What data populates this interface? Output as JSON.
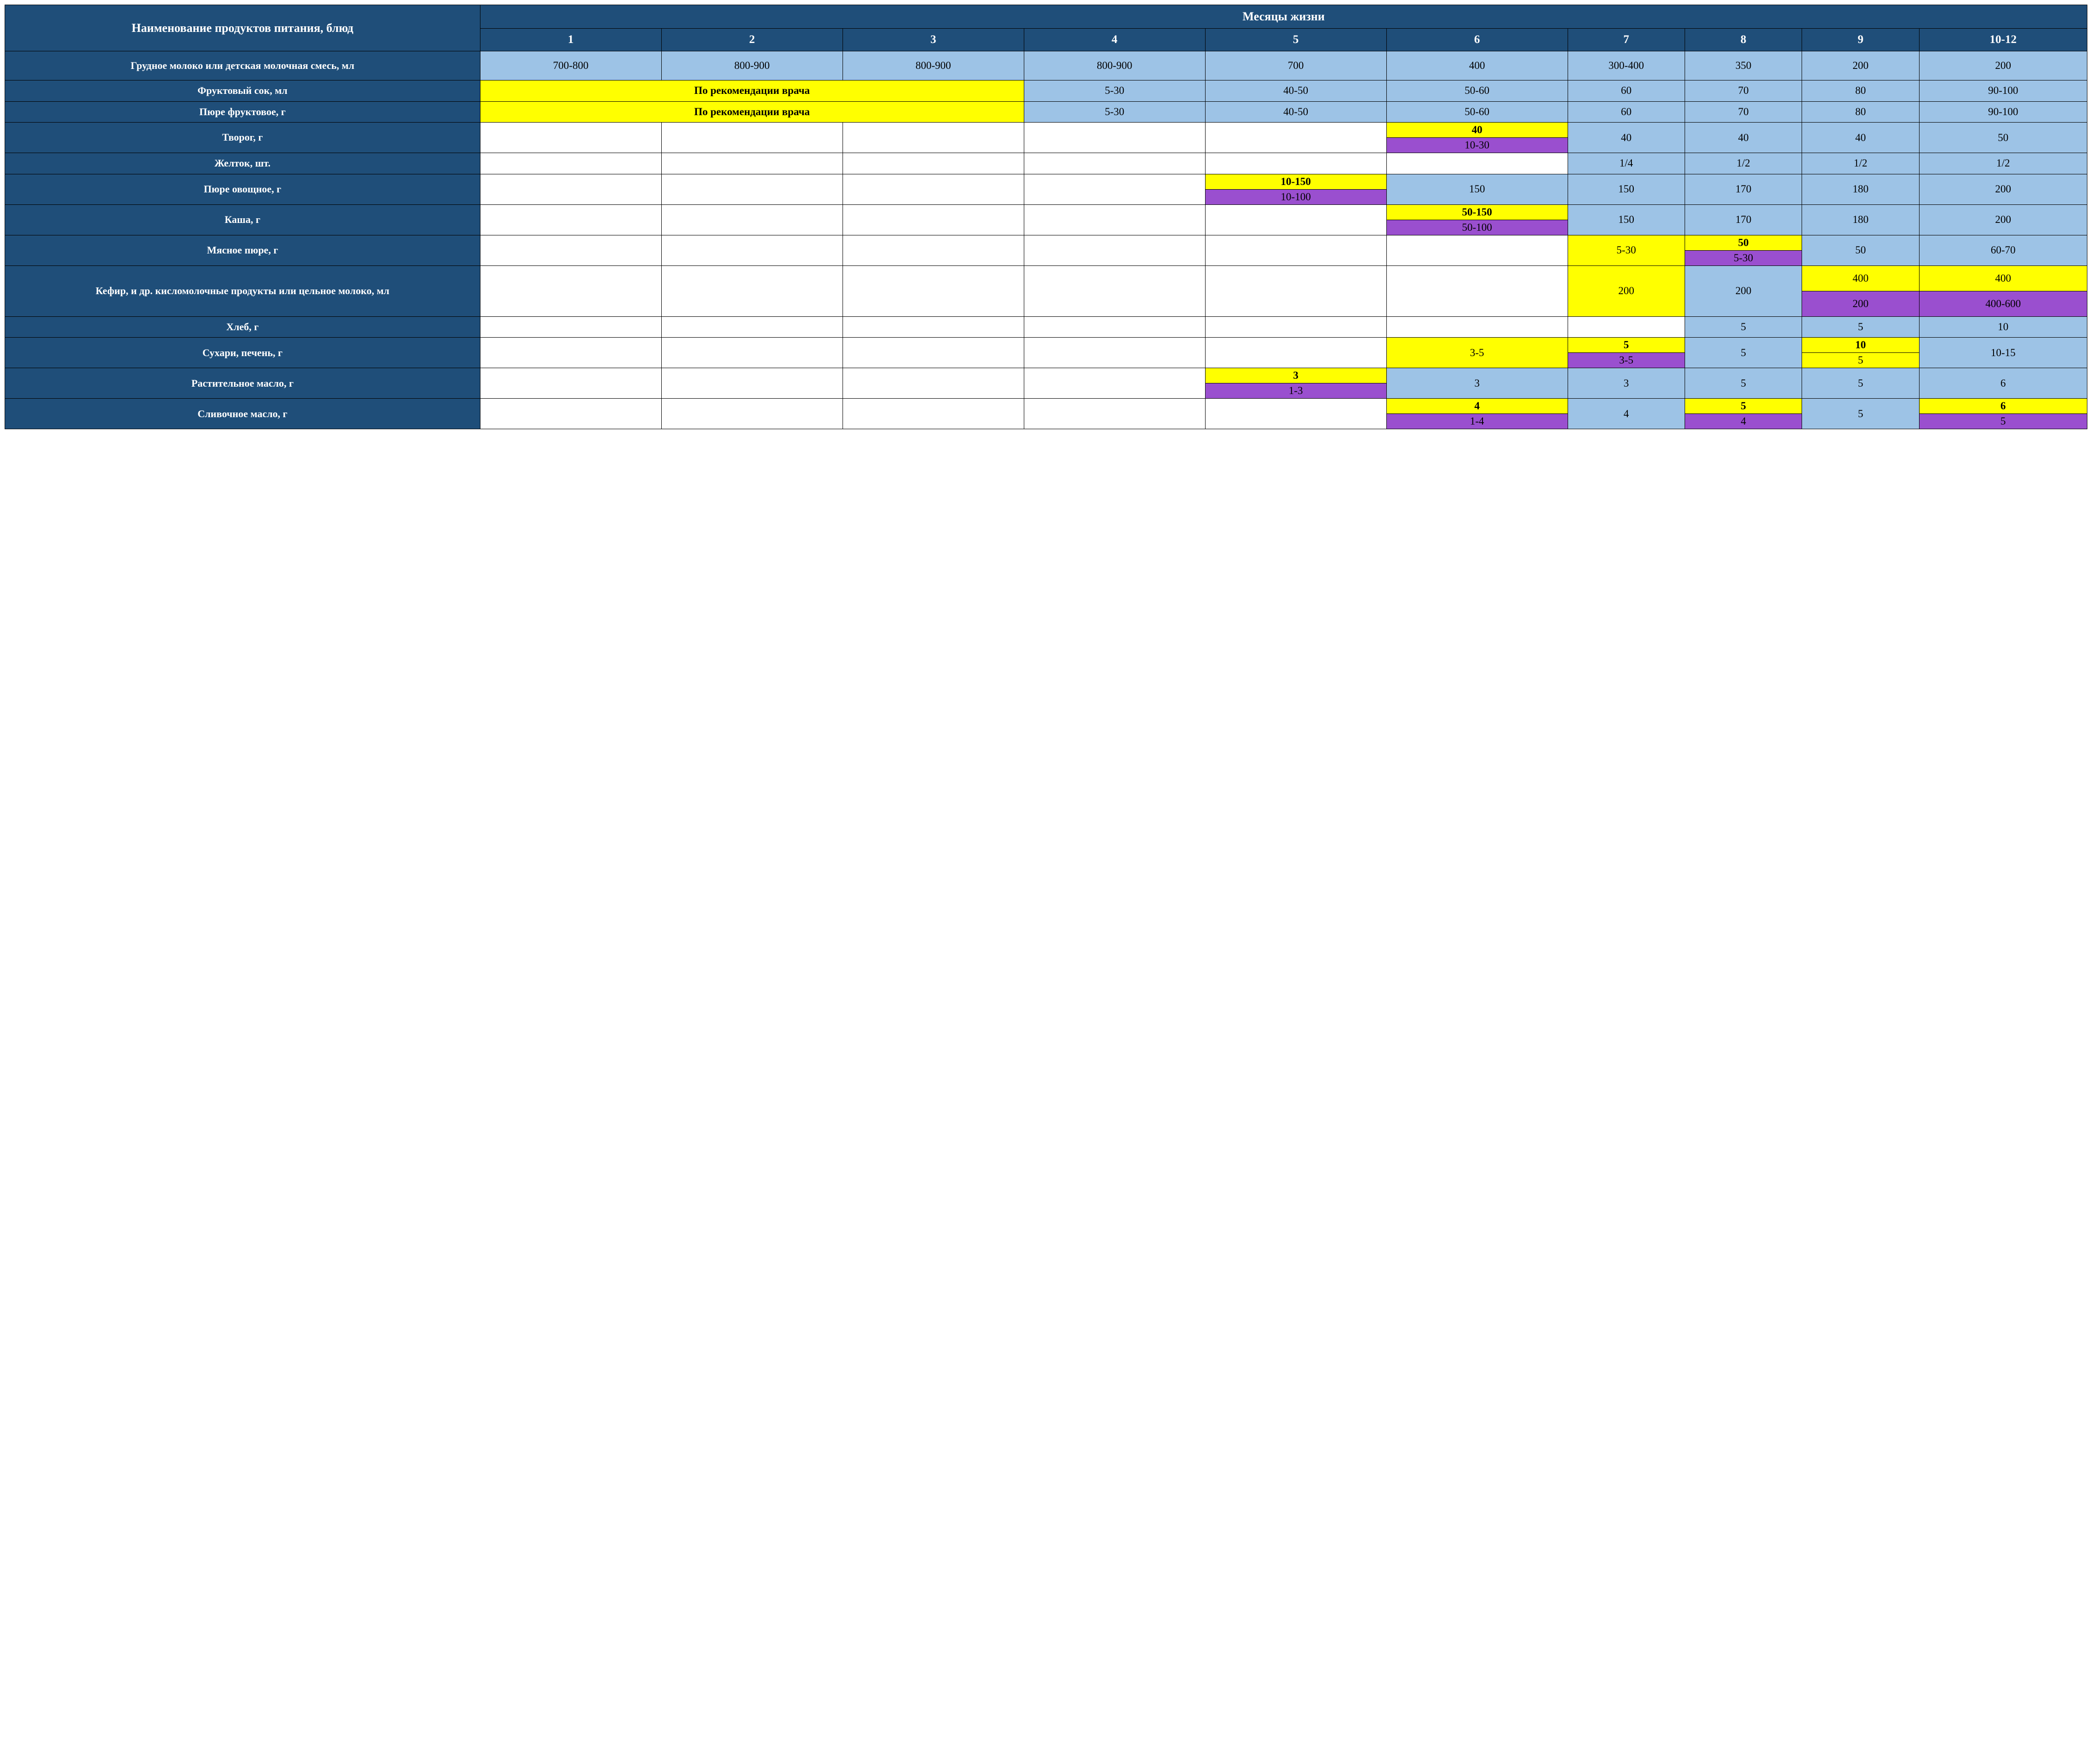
{
  "colors": {
    "header_bg": "#1f4e79",
    "header_fg": "#ffffff",
    "blue_bg": "#9dc3e6",
    "yellow_bg": "#ffff00",
    "purple_bg": "#9a4fcf",
    "white_bg": "#ffffff",
    "border": "#000000",
    "text": "#000000"
  },
  "typography": {
    "font_family": "Times New Roman",
    "header_fontsize_pt": 20,
    "body_fontsize_pt": 18,
    "header_weight": "bold"
  },
  "header": {
    "rowlabel_title": "Наименование продуктов питания, блюд",
    "months_title": "Месяцы жизни",
    "months": [
      "1",
      "2",
      "3",
      "4",
      "5",
      "6",
      "7",
      "8",
      "9",
      "10-12"
    ]
  },
  "doctor_note": "По рекомендации врача",
  "rows": {
    "milk": {
      "label": "Грудное молоко или детская молочная смесь, мл",
      "cells": [
        "700-800",
        "800-900",
        "800-900",
        "800-900",
        "700",
        "400",
        "300-400",
        "350",
        "200",
        "200"
      ]
    },
    "juice": {
      "label": "Фруктовый сок, мл",
      "cells_4_10": [
        "5-30",
        "40-50",
        "50-60",
        "60",
        "70",
        "80",
        "90-100"
      ]
    },
    "fruit_puree": {
      "label": "Пюре фруктовое, г",
      "cells_4_10": [
        "5-30",
        "40-50",
        "50-60",
        "60",
        "70",
        "80",
        "90-100"
      ]
    },
    "tvorog": {
      "label": "Творог, г",
      "m6_top": "40",
      "m6_bottom": "10-30",
      "m7": "40",
      "m8": "40",
      "m9": "40",
      "m10": "50"
    },
    "yolk": {
      "label": "Желток, шт.",
      "m7": "1/4",
      "m8": "1/2",
      "m9": "1/2",
      "m10": "1/2"
    },
    "veg_puree": {
      "label": "Пюре овощное, г",
      "m5_top": "10-150",
      "m5_bottom": "10-100",
      "m6": "150",
      "m7": "150",
      "m8": "170",
      "m9": "180",
      "m10": "200"
    },
    "kasha": {
      "label": "Каша, г",
      "m6_top": "50-150",
      "m6_bottom": "50-100",
      "m7": "150",
      "m8": "170",
      "m9": "180",
      "m10": "200"
    },
    "meat": {
      "label": "Мясное пюре, г",
      "m7": "5-30",
      "m8_top": "50",
      "m8_bottom": "5-30",
      "m9": "50",
      "m10": "60-70"
    },
    "kefir": {
      "label": "Кефир, и др. кисломолочные продукты или цельное молоко, мл",
      "m7": "200",
      "m8": "200",
      "m9_top": "400",
      "m9_bottom": "200",
      "m10_top": "400",
      "m10_bottom": "400-600"
    },
    "bread": {
      "label": "Хлеб, г",
      "m8": "5",
      "m9": "5",
      "m10": "10"
    },
    "crackers": {
      "label": "Сухари, печень, г",
      "m6": "3-5",
      "m7_top": "5",
      "m7_bottom": "3-5",
      "m8": "5",
      "m9_top": "10",
      "m9_bottom": "5",
      "m10": "10-15"
    },
    "veg_oil": {
      "label": "Растительное масло, г",
      "m5_top": "3",
      "m5_bottom": "1-3",
      "m6": "3",
      "m7": "3",
      "m8": "5",
      "m9": "5",
      "m10": "6"
    },
    "butter": {
      "label": "Сливочное масло, г",
      "m6_top": "4",
      "m6_bottom": "1-4",
      "m7": "4",
      "m8_top": "5",
      "m8_bottom": "4",
      "m9": "5",
      "m10_top": "6",
      "m10_bottom": "5"
    }
  }
}
